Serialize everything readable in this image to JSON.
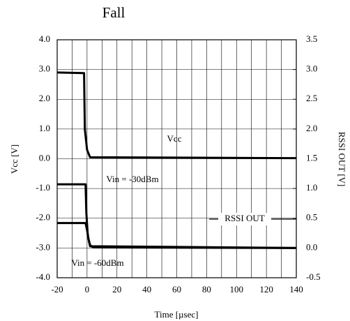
{
  "chart_data": {
    "type": "line",
    "title": "Fall",
    "x_label": "Time [µsec]",
    "y_label": "Vcc [V]",
    "y2_label": "RSSI OUT [V]",
    "annotations": [
      "RSSI OUT"
    ],
    "xlim": [
      -20,
      140
    ],
    "xticks": [
      -20,
      0,
      20,
      40,
      60,
      80,
      100,
      120,
      140
    ],
    "xminor_ticks": [
      -10,
      10,
      30,
      50,
      70,
      90,
      110,
      130
    ],
    "ylim": [
      -4,
      4
    ],
    "yticks": [
      {
        "value": -4,
        "label": "-4.0"
      },
      {
        "value": -3,
        "label": "-3.0"
      },
      {
        "value": -2,
        "label": "-2.0"
      },
      {
        "value": -1,
        "label": "-1.0"
      },
      {
        "value": 0,
        "label": "0.0"
      },
      {
        "value": 1,
        "label": "1.0"
      },
      {
        "value": 2,
        "label": "2.0"
      },
      {
        "value": 3,
        "label": "3.0"
      },
      {
        "value": 4,
        "label": "4.0"
      }
    ],
    "y2lim": [
      -0.5,
      3.5
    ],
    "y2ticks": [
      -0.5,
      {
        "value": 0,
        "label": "0.0"
      },
      0.5,
      {
        "value": 1,
        "label": "1.0"
      },
      1.5,
      {
        "value": 2,
        "label": "2.0"
      },
      2.5,
      {
        "value": 3,
        "label": "3.0"
      },
      3.5
    ],
    "grid": true,
    "series": [
      {
        "name": "Vcc",
        "color": "#000000",
        "axis": "y",
        "x": [
          -20,
          -2,
          -1.5,
          0,
          2,
          140
        ],
        "values": [
          2.9,
          2.88,
          1.0,
          0.3,
          0.05,
          0.02
        ]
      },
      {
        "name": "Vin = -30dBm",
        "color": "#000000",
        "axis": "y2",
        "x": [
          -20,
          -1,
          -0.5,
          0.5,
          2,
          140
        ],
        "values": [
          1.07,
          1.07,
          0.6,
          0.2,
          0.03,
          0.0
        ]
      },
      {
        "name": "Vin = -60dBm",
        "color": "#000000",
        "axis": "y2",
        "x": [
          -20,
          -1,
          0,
          1,
          2,
          4,
          140
        ],
        "values": [
          0.42,
          0.42,
          0.3,
          0.15,
          0.05,
          0.01,
          0.0
        ]
      }
    ]
  }
}
